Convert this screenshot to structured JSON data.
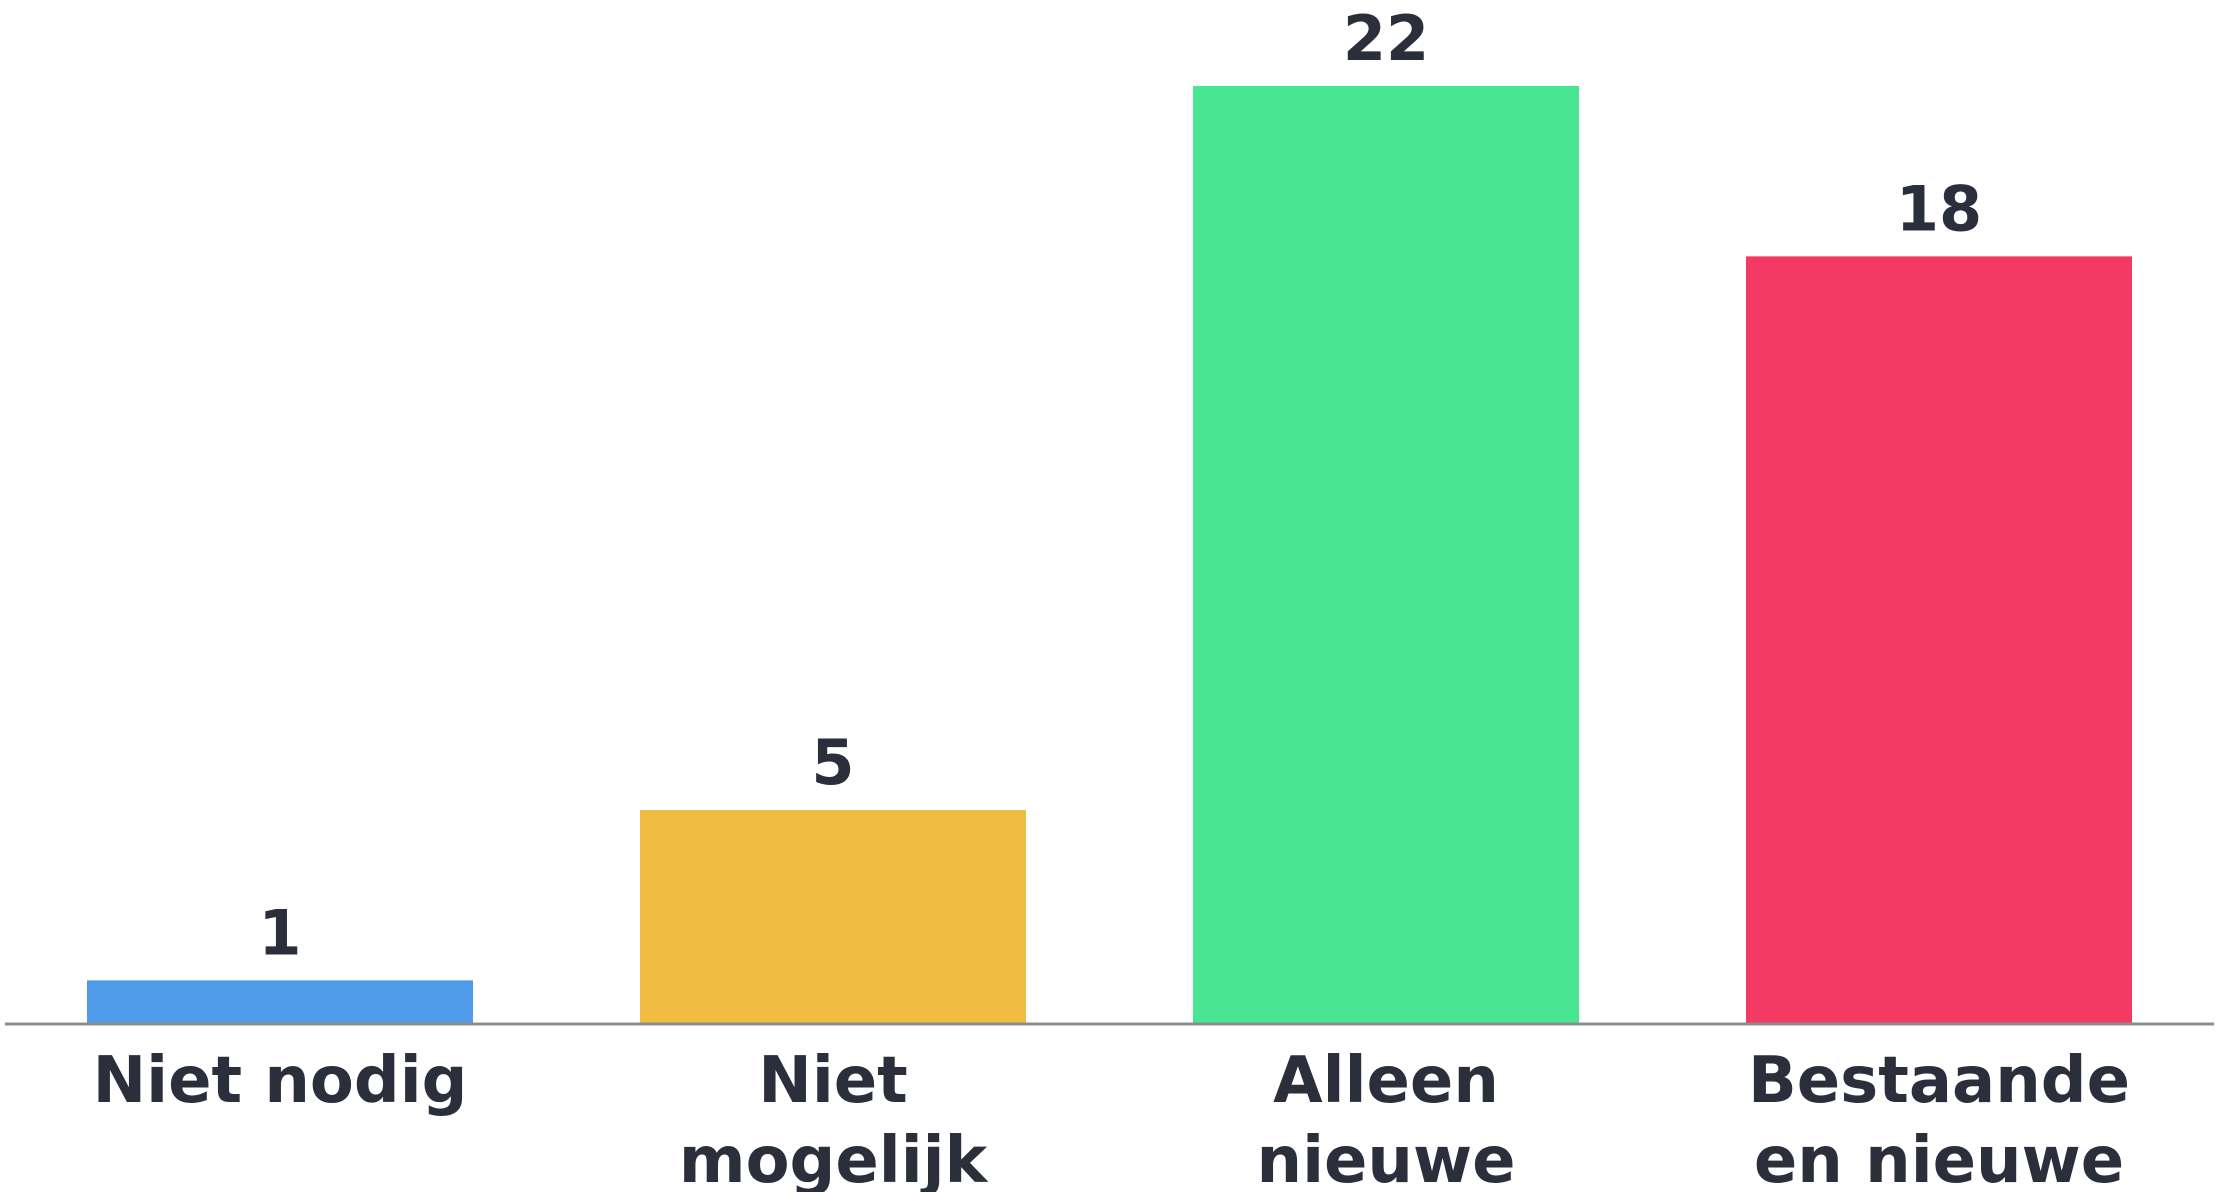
{
  "chart_data": {
    "type": "bar",
    "title": "",
    "xlabel": "",
    "ylabel": "",
    "categories": [
      [
        "Niet nodig"
      ],
      [
        "Niet",
        "mogelijk"
      ],
      [
        "Alleen",
        "nieuwe"
      ],
      [
        "Bestaande",
        "en nieuwe"
      ]
    ],
    "values": [
      1,
      5,
      22,
      18
    ],
    "colors": [
      "#4f9bea",
      "#f0bd42",
      "#48e693",
      "#f33a64"
    ],
    "data_labels": [
      "1",
      "5",
      "22",
      "18"
    ],
    "ylim": [
      0,
      22
    ],
    "grid": false,
    "legend": "none",
    "axis_color": "#8c8c8c",
    "text_color": "#2b2f3b"
  }
}
